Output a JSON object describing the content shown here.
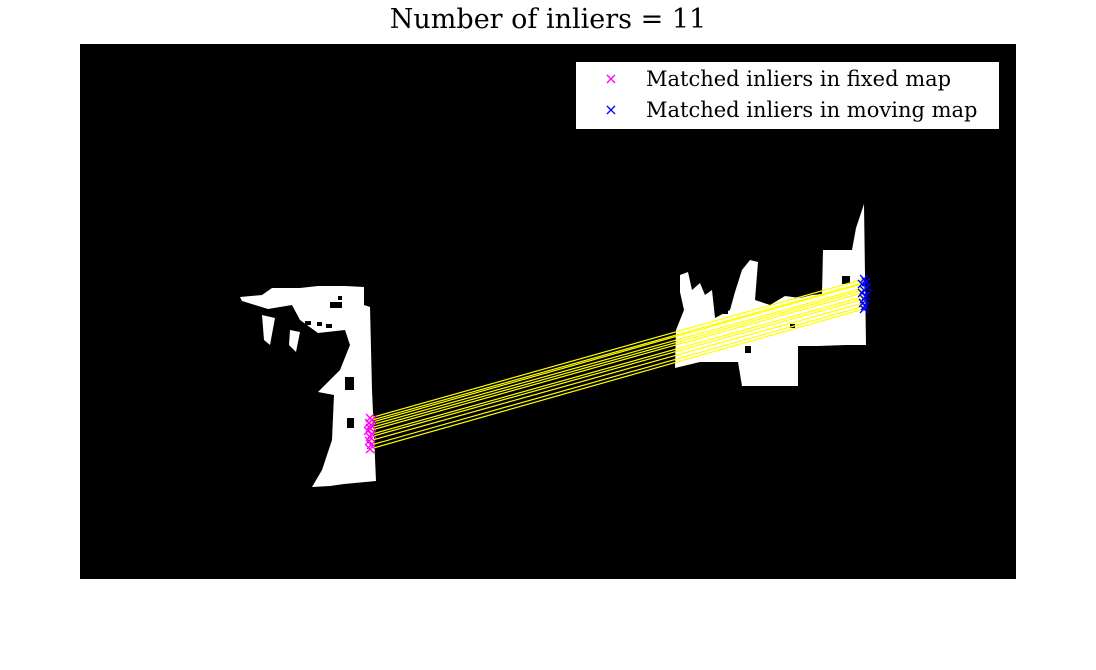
{
  "title": "Number of inliers = 11",
  "legend": {
    "fixed_label": "Matched inliers in fixed map",
    "moving_label": "Matched inliers in moving map",
    "fixed_marker": "×",
    "moving_marker": "×"
  },
  "colors": {
    "background": "#000000",
    "map": "#ffffff",
    "fixed_marker": "#ff00ff",
    "moving_marker": "#0000ff",
    "match_line": "#ffff00"
  },
  "icons": {
    "fixed_marker": "x-mark-icon",
    "moving_marker": "x-mark-icon"
  },
  "inlier_count": 11
}
